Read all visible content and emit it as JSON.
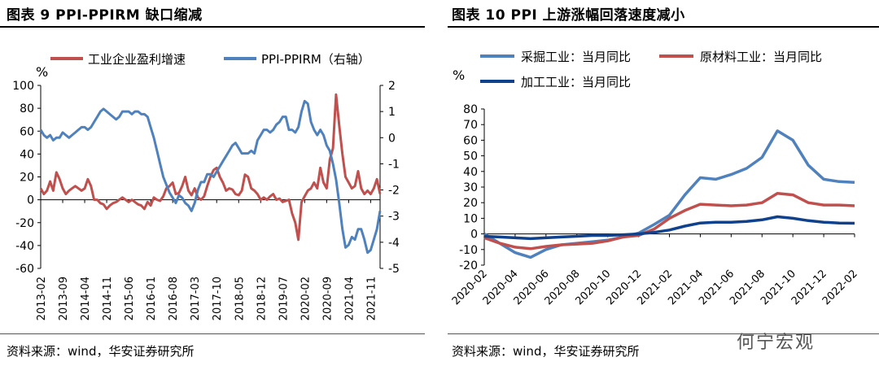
{
  "left_panel": {
    "title": "图表 9 PPI-PPIRM 缺口缩减",
    "source": "资料来源：wind，华安证券研究所"
  },
  "right_panel": {
    "title": "图表 10 PPI 上游涨幅回落速度减小",
    "source": "资料来源：wind，华安证券研究所"
  },
  "watermark": "何宁宏观",
  "colors": {
    "red": "#C0504D",
    "blue": "#4F81BD",
    "navy": "#10418C"
  },
  "chart_data": [
    {
      "type": "line",
      "title": "图表 9 PPI-PPIRM 缺口缩减",
      "ylabel": "%",
      "ylim": [
        -60,
        100
      ],
      "y2lim": [
        -5,
        2
      ],
      "yticks": [
        "100",
        "80",
        "60",
        "40",
        "20",
        "0",
        "-20",
        "-40",
        "-60"
      ],
      "y2ticks": [
        "2",
        "1",
        "0",
        "-1",
        "-2",
        "-3",
        "-4",
        "-5"
      ],
      "x_start": "2013-02",
      "x_count": 109,
      "xticks": [
        "2013-02",
        "2013-09",
        "2014-04",
        "2014-11",
        "2015-06",
        "2016-01",
        "2016-08",
        "2017-03",
        "2017-10",
        "2018-05",
        "2018-12",
        "2019-07",
        "2020-02",
        "2020-09",
        "2021-04",
        "2021-11"
      ],
      "series": [
        {
          "name": "工业企业盈利增速",
          "axis": "left",
          "color": "#C0504D",
          "values": [
            10,
            5,
            8,
            16,
            8,
            24,
            18,
            10,
            5,
            8,
            10,
            12,
            10,
            8,
            10,
            18,
            12,
            0,
            0,
            -3,
            -4,
            -8,
            -5,
            -3,
            -2,
            0,
            2,
            0,
            -2,
            0,
            -2,
            -4,
            -5,
            -8,
            -2,
            -5,
            2,
            0,
            -1,
            3,
            10,
            12,
            15,
            5,
            6,
            12,
            20,
            8,
            4,
            10,
            2,
            0,
            3,
            12,
            20,
            26,
            28,
            20,
            15,
            8,
            10,
            9,
            5,
            4,
            8,
            22,
            20,
            10,
            8,
            5,
            0,
            2,
            0,
            3,
            5,
            0,
            1,
            -2,
            -1,
            0,
            -12,
            -20,
            -35,
            -2,
            3,
            8,
            10,
            15,
            10,
            28,
            15,
            10,
            35,
            45,
            92,
            65,
            40,
            20,
            15,
            10,
            12,
            25,
            10,
            5,
            8,
            5,
            10,
            18,
            5
          ]
        },
        {
          "name": "PPI-PPIRM（右轴）",
          "axis": "right",
          "color": "#4F81BD",
          "values": [
            0.3,
            0.1,
            0.0,
            0.1,
            -0.1,
            0.0,
            0.0,
            0.2,
            0.1,
            0.0,
            0.1,
            0.2,
            0.3,
            0.4,
            0.4,
            0.3,
            0.4,
            0.6,
            0.8,
            1.0,
            1.1,
            1.0,
            0.9,
            0.8,
            0.7,
            0.8,
            1.0,
            1.0,
            1.0,
            0.9,
            1.0,
            1.0,
            0.9,
            0.9,
            0.8,
            0.4,
            0.0,
            -0.5,
            -1.0,
            -1.5,
            -1.8,
            -2.1,
            -2.3,
            -2.5,
            -2.2,
            -2.3,
            -2.5,
            -2.6,
            -2.8,
            -2.5,
            -2.0,
            -1.7,
            -1.7,
            -1.4,
            -1.4,
            -1.5,
            -1.3,
            -1.1,
            -0.9,
            -0.7,
            -0.5,
            -0.3,
            -0.2,
            -0.4,
            -0.6,
            -0.6,
            -0.6,
            -0.5,
            -0.6,
            -0.1,
            0.1,
            0.3,
            0.3,
            0.2,
            0.3,
            0.5,
            0.6,
            0.8,
            0.8,
            0.3,
            0.3,
            0.2,
            0.4,
            1.0,
            1.4,
            1.3,
            0.6,
            0.3,
            0.1,
            0.3,
            0.1,
            -0.3,
            -0.5,
            -1.0,
            -1.6,
            -2.5,
            -3.5,
            -4.2,
            -4.1,
            -3.8,
            -3.9,
            -3.5,
            -3.5,
            -3.9,
            -4.4,
            -4.3,
            -3.9,
            -3.5,
            -2.8
          ]
        }
      ]
    },
    {
      "type": "line",
      "title": "图表 10 PPI 上游涨幅回落速度减小",
      "ylabel": "%",
      "ylim": [
        -20,
        80
      ],
      "yticks": [
        "80",
        "70",
        "60",
        "50",
        "40",
        "30",
        "20",
        "10",
        "0",
        "-10",
        "-20"
      ],
      "x_start": "2020-02",
      "x_count": 25,
      "xticks": [
        "2020-02",
        "2020-04",
        "2020-06",
        "2020-08",
        "2020-10",
        "2020-12",
        "2021-02",
        "2021-04",
        "2021-06",
        "2021-08",
        "2021-10",
        "2021-12",
        "2022-02"
      ],
      "series": [
        {
          "name": "采掘工业：当月同比",
          "color": "#4F81BD",
          "values": [
            0.0,
            -6.0,
            -12.0,
            -15.0,
            -10.0,
            -7.0,
            -6.0,
            -5.0,
            -4.0,
            -2.0,
            0.5,
            6.0,
            12.0,
            25.0,
            36.0,
            35.0,
            38.0,
            42.0,
            49.0,
            66.0,
            60.0,
            44.0,
            35.0,
            33.5,
            33.0
          ]
        },
        {
          "name": "原材料工业：当月同比",
          "color": "#C0504D",
          "values": [
            -2.5,
            -6.0,
            -8.5,
            -9.5,
            -8.0,
            -7.0,
            -6.5,
            -6.0,
            -4.5,
            -2.0,
            -1.0,
            3.0,
            10.0,
            15.0,
            19.0,
            18.5,
            18.0,
            18.5,
            20.0,
            26.0,
            25.0,
            20.0,
            18.5,
            18.5,
            18.0
          ]
        },
        {
          "name": "加工工业：当月同比",
          "color": "#10418C",
          "values": [
            -1.5,
            -2.0,
            -2.5,
            -3.0,
            -2.5,
            -2.0,
            -1.5,
            -1.0,
            -1.0,
            -0.5,
            0.0,
            1.0,
            2.5,
            5.0,
            7.0,
            7.5,
            7.5,
            8.0,
            9.0,
            11.0,
            10.0,
            8.5,
            7.5,
            7.0,
            6.8
          ]
        }
      ]
    }
  ]
}
